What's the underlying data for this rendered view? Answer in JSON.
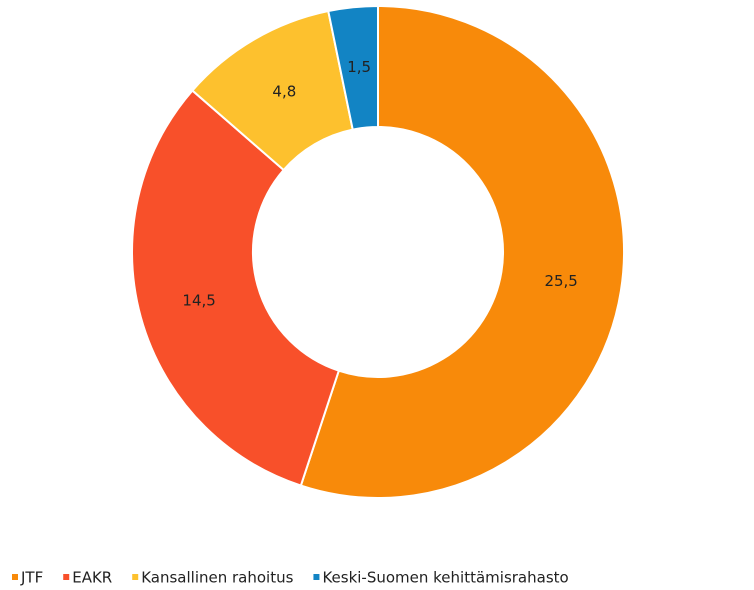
{
  "chart_data": {
    "type": "donut",
    "categories": [
      "JTF",
      "EAKR",
      "Kansallinen rahoitus",
      "Keski-Suomen kehittämisrahasto"
    ],
    "values": [
      25.5,
      14.5,
      4.8,
      1.5
    ],
    "value_labels": [
      "25,5",
      "14,5",
      "4,8",
      "1,5"
    ],
    "colors": [
      "#f88a0a",
      "#f8502a",
      "#fdc12e",
      "#1284c4"
    ],
    "legend": "bottom"
  }
}
